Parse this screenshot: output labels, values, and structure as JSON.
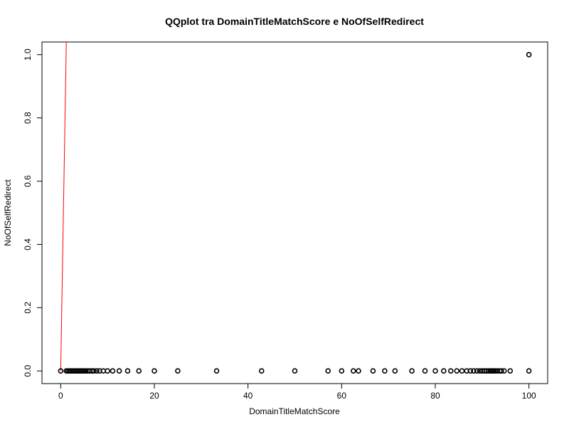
{
  "chart_data": {
    "type": "scatter",
    "title": "QQplot tra DomainTitleMatchScore e NoOfSelfRedirect",
    "xlabel": "DomainTitleMatchScore",
    "ylabel": "NoOfSelfRedirect",
    "xlim": [
      -4,
      104
    ],
    "ylim": [
      -0.04,
      1.04
    ],
    "x_ticks": [
      0,
      20,
      40,
      60,
      80,
      100
    ],
    "y_ticks": [
      0.0,
      0.2,
      0.4,
      0.6,
      0.8,
      1.0
    ],
    "x_tick_labels": [
      "0",
      "20",
      "40",
      "60",
      "80",
      "100"
    ],
    "y_tick_labels": [
      "0.0",
      "0.2",
      "0.4",
      "0.6",
      "0.8",
      "1.0"
    ],
    "grid": false,
    "point_color": "#000000",
    "line_color": "#ff0000",
    "reference_line": {
      "x1": 0,
      "y1": 0,
      "x2": 1.2,
      "y2": 1.04
    },
    "points": [
      {
        "x": 0,
        "y": 0
      },
      {
        "x": 1.2,
        "y": 0
      },
      {
        "x": 1.5,
        "y": 0
      },
      {
        "x": 1.8,
        "y": 0
      },
      {
        "x": 2.1,
        "y": 0
      },
      {
        "x": 2.4,
        "y": 0
      },
      {
        "x": 2.7,
        "y": 0
      },
      {
        "x": 3.0,
        "y": 0
      },
      {
        "x": 3.3,
        "y": 0
      },
      {
        "x": 3.6,
        "y": 0
      },
      {
        "x": 3.9,
        "y": 0
      },
      {
        "x": 4.2,
        "y": 0
      },
      {
        "x": 4.5,
        "y": 0
      },
      {
        "x": 4.8,
        "y": 0
      },
      {
        "x": 5.1,
        "y": 0
      },
      {
        "x": 5.4,
        "y": 0
      },
      {
        "x": 5.8,
        "y": 0
      },
      {
        "x": 6.2,
        "y": 0
      },
      {
        "x": 6.7,
        "y": 0
      },
      {
        "x": 7.1,
        "y": 0
      },
      {
        "x": 7.7,
        "y": 0
      },
      {
        "x": 8.3,
        "y": 0
      },
      {
        "x": 9.1,
        "y": 0
      },
      {
        "x": 10.0,
        "y": 0
      },
      {
        "x": 11.1,
        "y": 0
      },
      {
        "x": 12.5,
        "y": 0
      },
      {
        "x": 14.3,
        "y": 0
      },
      {
        "x": 16.7,
        "y": 0
      },
      {
        "x": 20.0,
        "y": 0
      },
      {
        "x": 25.0,
        "y": 0
      },
      {
        "x": 33.3,
        "y": 0
      },
      {
        "x": 42.9,
        "y": 0
      },
      {
        "x": 50.0,
        "y": 0
      },
      {
        "x": 57.1,
        "y": 0
      },
      {
        "x": 60.0,
        "y": 0
      },
      {
        "x": 62.5,
        "y": 0
      },
      {
        "x": 63.6,
        "y": 0
      },
      {
        "x": 66.7,
        "y": 0
      },
      {
        "x": 69.2,
        "y": 0
      },
      {
        "x": 71.4,
        "y": 0
      },
      {
        "x": 75.0,
        "y": 0
      },
      {
        "x": 77.8,
        "y": 0
      },
      {
        "x": 80.0,
        "y": 0
      },
      {
        "x": 81.8,
        "y": 0
      },
      {
        "x": 83.3,
        "y": 0
      },
      {
        "x": 84.6,
        "y": 0
      },
      {
        "x": 85.7,
        "y": 0
      },
      {
        "x": 86.7,
        "y": 0
      },
      {
        "x": 87.5,
        "y": 0
      },
      {
        "x": 88.2,
        "y": 0
      },
      {
        "x": 88.9,
        "y": 0
      },
      {
        "x": 89.5,
        "y": 0
      },
      {
        "x": 90.0,
        "y": 0
      },
      {
        "x": 90.5,
        "y": 0
      },
      {
        "x": 90.9,
        "y": 0
      },
      {
        "x": 91.3,
        "y": 0
      },
      {
        "x": 91.7,
        "y": 0
      },
      {
        "x": 92.0,
        "y": 0
      },
      {
        "x": 92.3,
        "y": 0
      },
      {
        "x": 92.6,
        "y": 0
      },
      {
        "x": 92.9,
        "y": 0
      },
      {
        "x": 93.3,
        "y": 0
      },
      {
        "x": 93.8,
        "y": 0
      },
      {
        "x": 94.1,
        "y": 0
      },
      {
        "x": 94.7,
        "y": 0
      },
      {
        "x": 96.0,
        "y": 0
      },
      {
        "x": 100.0,
        "y": 0
      },
      {
        "x": 100.0,
        "y": 1
      }
    ]
  }
}
